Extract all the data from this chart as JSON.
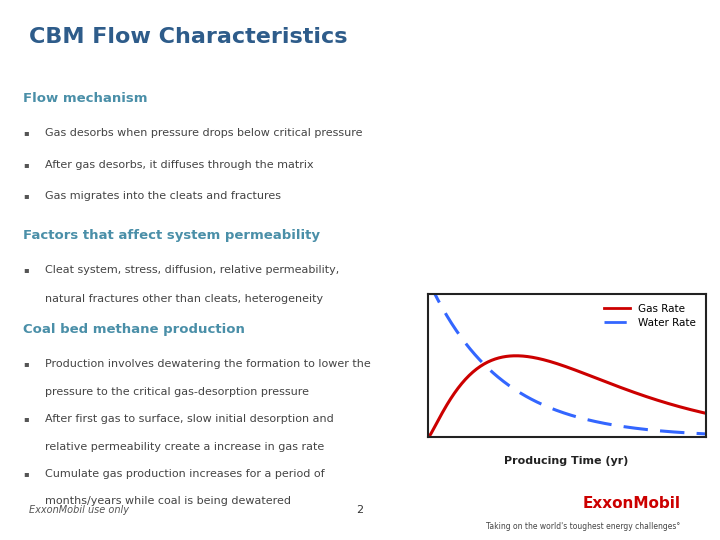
{
  "title": "CBM Flow Characteristics",
  "title_color": "#2E5C8A",
  "background_color": "#FFFFFF",
  "header_line_color": "#4A8FA8",
  "section_headers": [
    "Flow mechanism",
    "Factors that affect system permeability",
    "Coal bed methane production"
  ],
  "section_header_color": "#4A8FA8",
  "bullet_color": "#444444",
  "flow_mechanism_bullets": [
    "Gas desorbs when pressure drops below critical pressure",
    "After gas desorbs, it diffuses through the matrix",
    "Gas migrates into the cleats and fractures"
  ],
  "factors_bullet_line1": "Cleat system, stress, diffusion, relative permeability,",
  "factors_bullet_line2": "natural fractures other than cleats, heterogeneity",
  "coal_bed_bullets": [
    [
      "Production involves dewatering the formation to lower the",
      "pressure to the critical gas-desorption pressure"
    ],
    [
      "After first gas to surface, slow initial desorption and",
      "relative permeability create a increase in gas rate"
    ],
    [
      "Cumulate gas production increases for a period of",
      "months/years while coal is being dewatered"
    ]
  ],
  "footer_left": "ExxonMobil use only",
  "footer_center": "2",
  "footer_tagline": "Taking on the world's toughest energy challenges°",
  "exxon_color": "#CC0000",
  "chart_xlabel": "Producing Time (yr)",
  "gas_rate_color": "#CC0000",
  "water_rate_color": "#3366FF",
  "legend_gas": "Gas Rate",
  "legend_water": "Water Rate",
  "footer_line_color": "#4A8FA8"
}
